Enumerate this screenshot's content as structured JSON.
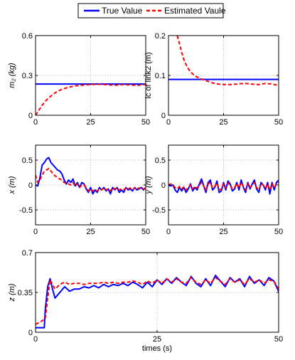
{
  "legend": {
    "entries": [
      {
        "label": "True Value",
        "color": "#0000ff",
        "style": "solid"
      },
      {
        "label": "Estimated Vaule",
        "color": "#ff0000",
        "style": "dashed"
      }
    ]
  },
  "chart_data": [
    {
      "id": "m2",
      "type": "line",
      "ylabel": "m₂ (kg)",
      "xlabel": "",
      "xlim": [
        0,
        50
      ],
      "ylim": [
        0,
        0.6
      ],
      "xticks": [
        "0",
        "25",
        "50"
      ],
      "yticks": [
        "0",
        "0.3",
        "0.6"
      ],
      "grid": true,
      "series": [
        {
          "name": "True Value",
          "x": [
            0,
            50
          ],
          "y": [
            0.235,
            0.235
          ]
        },
        {
          "name": "Estimated Vaule",
          "x": [
            0,
            1,
            2,
            3,
            5,
            7,
            9,
            11,
            13,
            15,
            17,
            20,
            23,
            26,
            30,
            33,
            36,
            38,
            40,
            43,
            46,
            48,
            50
          ],
          "y": [
            0.0,
            0.025,
            0.05,
            0.075,
            0.115,
            0.145,
            0.17,
            0.188,
            0.201,
            0.211,
            0.218,
            0.225,
            0.229,
            0.232,
            0.233,
            0.229,
            0.226,
            0.228,
            0.231,
            0.228,
            0.225,
            0.228,
            0.232
          ]
        }
      ]
    },
    {
      "id": "lc",
      "type": "line",
      "ylabel": "lc of link2 (m)",
      "xlabel": "",
      "xlim": [
        0,
        50
      ],
      "ylim": [
        0,
        0.2
      ],
      "xticks": [
        "0",
        "25",
        "50"
      ],
      "yticks": [
        "0",
        "0.1",
        "0.2"
      ],
      "grid": true,
      "series": [
        {
          "name": "True Value",
          "x": [
            0,
            50
          ],
          "y": [
            0.09,
            0.09
          ]
        },
        {
          "name": "Estimated Vaule",
          "x": [
            4,
            5,
            6,
            7,
            8,
            9,
            10,
            12,
            14,
            16,
            18,
            20,
            23,
            26,
            29,
            32,
            35,
            38,
            41,
            44,
            47,
            50
          ],
          "y": [
            0.2,
            0.18,
            0.158,
            0.14,
            0.127,
            0.117,
            0.109,
            0.099,
            0.093,
            0.089,
            0.085,
            0.081,
            0.078,
            0.077,
            0.077,
            0.079,
            0.08,
            0.078,
            0.077,
            0.08,
            0.078,
            0.075
          ]
        }
      ]
    },
    {
      "id": "x",
      "type": "line",
      "ylabel": "x (m)",
      "xlabel": "",
      "xlim": [
        0,
        50
      ],
      "ylim": [
        -0.8,
        0.8
      ],
      "xticks": [
        "0",
        "25",
        "50"
      ],
      "yticks": [
        "-0.5",
        "0",
        "0.5"
      ],
      "grid": true,
      "series": [
        {
          "name": "True Value",
          "x": [
            0,
            1,
            2,
            3,
            4,
            5,
            6,
            7,
            8,
            9,
            10,
            11,
            12,
            13,
            14,
            15,
            16,
            17,
            18,
            19,
            20,
            21,
            22,
            23,
            24,
            25,
            26,
            27,
            28,
            29,
            30,
            31,
            32,
            33,
            34,
            35,
            36,
            37,
            38,
            39,
            40,
            41,
            42,
            43,
            44,
            45,
            46,
            47,
            48,
            49,
            50
          ],
          "y": [
            0.0,
            -0.02,
            0.15,
            0.4,
            0.45,
            0.52,
            0.55,
            0.45,
            0.4,
            0.35,
            0.3,
            0.28,
            0.22,
            0.1,
            0.02,
            0.1,
            0.05,
            0.12,
            -0.02,
            0.05,
            -0.05,
            0.05,
            0.02,
            -0.08,
            -0.15,
            -0.05,
            -0.18,
            -0.1,
            -0.15,
            -0.05,
            -0.1,
            -0.05,
            -0.12,
            -0.08,
            -0.18,
            -0.05,
            -0.1,
            -0.05,
            -0.15,
            -0.1,
            -0.15,
            -0.05,
            -0.1,
            -0.08,
            -0.12,
            -0.05,
            -0.1,
            -0.08,
            -0.05,
            -0.1,
            -0.05
          ]
        },
        {
          "name": "Estimated Vaule",
          "x": [
            0,
            1,
            2,
            3,
            4,
            5,
            6,
            7,
            8,
            9,
            10,
            11,
            12,
            13,
            14,
            15,
            16,
            17,
            18,
            19,
            20,
            21,
            22,
            23,
            24,
            25,
            26,
            27,
            28,
            29,
            30,
            31,
            32,
            33,
            34,
            35,
            36,
            37,
            38,
            39,
            40,
            41,
            42,
            43,
            44,
            45,
            46,
            47,
            48,
            49,
            50
          ],
          "y": [
            0.2,
            0.05,
            0.1,
            0.2,
            0.27,
            0.3,
            0.33,
            0.28,
            0.22,
            0.18,
            0.15,
            0.12,
            0.1,
            0.05,
            0.03,
            0.02,
            0.0,
            0.05,
            -0.02,
            0.02,
            -0.05,
            0.0,
            0.0,
            -0.05,
            -0.12,
            -0.08,
            -0.12,
            -0.1,
            -0.12,
            -0.08,
            -0.1,
            -0.06,
            -0.1,
            -0.08,
            -0.12,
            -0.06,
            -0.08,
            -0.06,
            -0.1,
            -0.08,
            -0.1,
            -0.06,
            -0.08,
            -0.06,
            -0.1,
            -0.06,
            -0.08,
            -0.06,
            -0.06,
            -0.08,
            -0.06
          ]
        }
      ]
    },
    {
      "id": "y",
      "type": "line",
      "ylabel": "y (m)",
      "xlabel": "",
      "xlim": [
        0,
        50
      ],
      "ylim": [
        -0.8,
        0.8
      ],
      "xticks": [
        "0",
        "25",
        "50"
      ],
      "yticks": [
        "-0.5",
        "0",
        "0.5"
      ],
      "grid": true,
      "series": [
        {
          "name": "True Value",
          "x": [
            0,
            1,
            2,
            3,
            4,
            5,
            6,
            7,
            8,
            9,
            10,
            11,
            12,
            13,
            14,
            15,
            16,
            17,
            18,
            19,
            20,
            21,
            22,
            23,
            24,
            25,
            26,
            27,
            28,
            29,
            30,
            31,
            32,
            33,
            34,
            35,
            36,
            37,
            38,
            39,
            40,
            41,
            42,
            43,
            44,
            45,
            46,
            47,
            48,
            49,
            50
          ],
          "y": [
            0.0,
            -0.02,
            0.0,
            -0.1,
            -0.15,
            -0.05,
            -0.12,
            -0.05,
            -0.15,
            -0.08,
            0.02,
            -0.12,
            -0.05,
            -0.1,
            0.02,
            0.12,
            -0.02,
            -0.15,
            0.05,
            0.1,
            -0.1,
            -0.05,
            0.08,
            -0.15,
            -0.12,
            0.05,
            -0.1,
            0.08,
            0.02,
            -0.12,
            -0.08,
            0.05,
            -0.1,
            0.1,
            -0.05,
            -0.15,
            0.05,
            -0.08,
            0.02,
            0.1,
            -0.08,
            -0.15,
            0.05,
            0.0,
            -0.1,
            0.05,
            -0.18,
            0.05,
            -0.1,
            0.05,
            0.1
          ]
        },
        {
          "name": "Estimated Vaule",
          "x": [
            0,
            1,
            2,
            3,
            4,
            5,
            6,
            7,
            8,
            9,
            10,
            11,
            12,
            13,
            14,
            15,
            16,
            17,
            18,
            19,
            20,
            21,
            22,
            23,
            24,
            25,
            26,
            27,
            28,
            29,
            30,
            31,
            32,
            33,
            34,
            35,
            36,
            37,
            38,
            39,
            40,
            41,
            42,
            43,
            44,
            45,
            46,
            47,
            48,
            49,
            50
          ],
          "y": [
            0.0,
            0.02,
            0.0,
            -0.05,
            -0.08,
            -0.03,
            -0.08,
            -0.04,
            -0.1,
            -0.05,
            0.0,
            -0.08,
            -0.03,
            -0.06,
            0.0,
            0.05,
            -0.02,
            -0.1,
            0.02,
            0.05,
            -0.06,
            -0.03,
            0.04,
            -0.1,
            -0.08,
            0.02,
            -0.06,
            0.04,
            0.0,
            -0.08,
            -0.05,
            0.03,
            -0.06,
            0.05,
            -0.03,
            -0.1,
            0.02,
            -0.05,
            0.0,
            0.05,
            -0.05,
            -0.1,
            0.02,
            0.0,
            -0.06,
            0.02,
            -0.1,
            0.02,
            -0.06,
            0.02,
            0.05
          ]
        }
      ]
    },
    {
      "id": "z",
      "type": "line",
      "ylabel": "z (m)",
      "xlabel": "times (s)",
      "xlim": [
        0,
        50
      ],
      "ylim": [
        0,
        0.7
      ],
      "xticks": [
        "0",
        "25",
        "50"
      ],
      "yticks": [
        "0",
        "0.35",
        "0.7"
      ],
      "grid": true,
      "series": [
        {
          "name": "True Value",
          "x": [
            0,
            1,
            1.8,
            2,
            2.5,
            3,
            3.5,
            4,
            5,
            6,
            7,
            8,
            9,
            10,
            11,
            12,
            13,
            14,
            15,
            16,
            17,
            18,
            19,
            20,
            21,
            22,
            23,
            24,
            25,
            26,
            27,
            28,
            29,
            30,
            31,
            32,
            33,
            34,
            35,
            36,
            37,
            38,
            39,
            40,
            41,
            42,
            43,
            44,
            45,
            46,
            47,
            48,
            49,
            50
          ],
          "y": [
            0.04,
            0.04,
            0.04,
            0.2,
            0.4,
            0.47,
            0.38,
            0.3,
            0.35,
            0.4,
            0.36,
            0.38,
            0.38,
            0.4,
            0.39,
            0.41,
            0.39,
            0.42,
            0.4,
            0.42,
            0.41,
            0.43,
            0.41,
            0.44,
            0.42,
            0.39,
            0.44,
            0.4,
            0.46,
            0.42,
            0.47,
            0.43,
            0.48,
            0.44,
            0.41,
            0.49,
            0.43,
            0.4,
            0.47,
            0.41,
            0.5,
            0.45,
            0.4,
            0.48,
            0.44,
            0.47,
            0.4,
            0.49,
            0.43,
            0.46,
            0.41,
            0.48,
            0.45,
            0.36
          ]
        },
        {
          "name": "Estimated Vaule",
          "x": [
            0,
            1,
            2,
            2.5,
            3,
            3.5,
            4,
            5,
            6,
            7,
            8,
            9,
            10,
            11,
            12,
            13,
            14,
            15,
            16,
            17,
            18,
            19,
            20,
            21,
            22,
            23,
            24,
            25,
            26,
            27,
            28,
            29,
            30,
            31,
            32,
            33,
            34,
            35,
            36,
            37,
            38,
            39,
            40,
            41,
            42,
            43,
            44,
            45,
            46,
            47,
            48,
            49,
            50
          ],
          "y": [
            0.07,
            0.09,
            0.12,
            0.3,
            0.46,
            0.42,
            0.38,
            0.42,
            0.44,
            0.42,
            0.43,
            0.43,
            0.42,
            0.43,
            0.43,
            0.43,
            0.44,
            0.43,
            0.44,
            0.43,
            0.44,
            0.44,
            0.45,
            0.44,
            0.42,
            0.45,
            0.43,
            0.46,
            0.43,
            0.47,
            0.44,
            0.47,
            0.44,
            0.43,
            0.48,
            0.44,
            0.42,
            0.46,
            0.43,
            0.48,
            0.45,
            0.42,
            0.47,
            0.44,
            0.46,
            0.42,
            0.47,
            0.44,
            0.46,
            0.43,
            0.46,
            0.45,
            0.38
          ]
        }
      ]
    }
  ]
}
